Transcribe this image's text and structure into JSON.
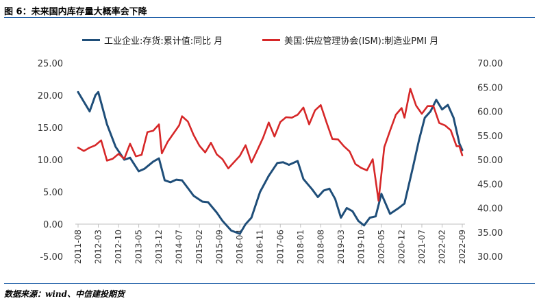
{
  "title": "图 6：未来国内库存量大概率会下降",
  "source": "数据来源：wind、中信建投期货",
  "chart_data": {
    "type": "line",
    "title": "图 6：未来国内库存量大概率会下降",
    "legend_position": "top",
    "grid": false,
    "x_ticks": [
      "2011-08",
      "2012-03",
      "2012-10",
      "2013-05",
      "2013-12",
      "2014-07",
      "2015-02",
      "2015-09",
      "2016-04",
      "2016-11",
      "2017-06",
      "2018-01",
      "2018-08",
      "2019-03",
      "2019-10",
      "2020-05",
      "2020-12",
      "2021-07",
      "2022-02",
      "2022-09"
    ],
    "y_left": {
      "ylim": [
        -5,
        25
      ],
      "ticks": [
        "25.00",
        "20.00",
        "15.00",
        "10.00",
        "5.00",
        "0.00",
        "-5.00"
      ]
    },
    "y_right": {
      "ylim": [
        30,
        70
      ],
      "ticks": [
        "70.00",
        "65.00",
        "60.00",
        "55.00",
        "50.00",
        "45.00",
        "40.00",
        "35.00",
        "30.00"
      ]
    },
    "series": [
      {
        "name": "工业企业:存货:累计值:同比 月",
        "axis": "left",
        "color": "#1f4e79",
        "x": [
          "2011-08",
          "2011-10",
          "2011-12",
          "2012-02",
          "2012-03",
          "2012-06",
          "2012-09",
          "2012-12",
          "2013-02",
          "2013-05",
          "2013-07",
          "2013-10",
          "2013-12",
          "2014-02",
          "2014-04",
          "2014-06",
          "2014-08",
          "2014-10",
          "2014-12",
          "2015-03",
          "2015-05",
          "2015-08",
          "2015-10",
          "2016-01",
          "2016-04",
          "2016-06",
          "2016-08",
          "2016-11",
          "2017-02",
          "2017-05",
          "2017-07",
          "2017-09",
          "2017-12",
          "2018-02",
          "2018-05",
          "2018-07",
          "2018-09",
          "2018-11",
          "2019-01",
          "2019-03",
          "2019-05",
          "2019-07",
          "2019-09",
          "2019-11",
          "2020-01",
          "2020-03",
          "2020-05",
          "2020-08",
          "2020-11",
          "2021-01",
          "2021-04",
          "2021-06",
          "2021-08",
          "2021-10",
          "2021-12",
          "2022-02",
          "2022-04",
          "2022-06",
          "2022-08",
          "2022-09"
        ],
        "values": [
          20.5,
          19.0,
          17.5,
          20.0,
          20.5,
          15.5,
          12.0,
          10.0,
          10.3,
          8.2,
          8.6,
          9.7,
          10.2,
          6.8,
          6.5,
          6.9,
          6.8,
          5.6,
          4.4,
          3.5,
          3.4,
          1.8,
          0.5,
          -1.0,
          -1.5,
          0.0,
          1.0,
          5.0,
          7.5,
          9.5,
          9.6,
          9.2,
          9.8,
          7.0,
          5.4,
          4.2,
          5.2,
          5.5,
          3.9,
          1.0,
          2.5,
          2.0,
          0.5,
          -0.2,
          1.0,
          1.2,
          4.7,
          1.6,
          2.5,
          3.2,
          9.0,
          13.0,
          16.5,
          17.5,
          19.3,
          17.8,
          18.5,
          16.5,
          12.5,
          11.5
        ]
      },
      {
        "name": "美国:供应管理协会(ISM):制造业PMI 月",
        "axis": "right",
        "color": "#d62728",
        "x": [
          "2011-08",
          "2011-10",
          "2011-12",
          "2012-02",
          "2012-04",
          "2012-06",
          "2012-08",
          "2012-10",
          "2012-12",
          "2013-02",
          "2013-04",
          "2013-06",
          "2013-08",
          "2013-10",
          "2013-12",
          "2014-01",
          "2014-03",
          "2014-05",
          "2014-07",
          "2014-08",
          "2014-10",
          "2014-12",
          "2015-02",
          "2015-04",
          "2015-06",
          "2015-08",
          "2015-10",
          "2015-12",
          "2016-02",
          "2016-04",
          "2016-06",
          "2016-08",
          "2016-10",
          "2016-12",
          "2017-02",
          "2017-04",
          "2017-06",
          "2017-08",
          "2017-10",
          "2017-12",
          "2018-02",
          "2018-04",
          "2018-06",
          "2018-08",
          "2018-10",
          "2018-12",
          "2019-02",
          "2019-04",
          "2019-06",
          "2019-08",
          "2019-10",
          "2019-12",
          "2020-02",
          "2020-04",
          "2020-06",
          "2020-08",
          "2020-10",
          "2020-12",
          "2021-01",
          "2021-03",
          "2021-05",
          "2021-07",
          "2021-09",
          "2021-11",
          "2022-01",
          "2022-03",
          "2022-05",
          "2022-07",
          "2022-08",
          "2022-09"
        ],
        "values": [
          52.5,
          51.8,
          52.5,
          53.0,
          54.0,
          49.8,
          50.2,
          51.2,
          50.2,
          53.3,
          50.7,
          51.0,
          55.7,
          56.0,
          57.3,
          51.3,
          53.7,
          55.4,
          57.1,
          59.0,
          57.9,
          55.1,
          52.9,
          51.5,
          53.5,
          51.1,
          50.1,
          48.2,
          49.5,
          50.8,
          53.0,
          49.4,
          51.9,
          54.5,
          57.7,
          54.8,
          57.8,
          58.8,
          58.7,
          59.3,
          60.8,
          57.3,
          60.2,
          61.3,
          57.7,
          54.3,
          54.2,
          52.8,
          51.7,
          49.1,
          48.3,
          47.8,
          50.1,
          41.5,
          52.6,
          56.0,
          59.3,
          60.7,
          58.7,
          64.7,
          61.2,
          59.5,
          61.1,
          61.1,
          57.6,
          57.1,
          56.1,
          52.8,
          52.8,
          50.9
        ]
      }
    ]
  }
}
